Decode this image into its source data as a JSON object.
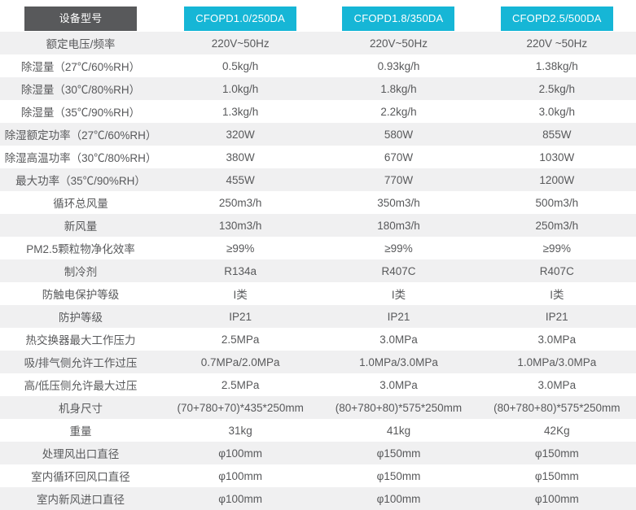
{
  "colors": {
    "header_label_bg": "#58595b",
    "model_badge_bg": "#16b6d6",
    "stripe_bg": "#f0f0f1",
    "text": "#58595b",
    "header_text": "#ffffff"
  },
  "table": {
    "header": {
      "label": "设备型号",
      "models": [
        "CFOPD1.0/250DA",
        "CFOPD1.8/350DA",
        "CFOPD2.5/500DA"
      ]
    },
    "rows": [
      {
        "label": "额定电压/频率",
        "values": [
          "220V~50Hz",
          "220V~50Hz",
          "220V ~50Hz"
        ]
      },
      {
        "label": "除湿量（27℃/60%RH）",
        "values": [
          "0.5kg/h",
          "0.93kg/h",
          "1.38kg/h"
        ]
      },
      {
        "label": "除湿量（30℃/80%RH）",
        "values": [
          "1.0kg/h",
          "1.8kg/h",
          "2.5kg/h"
        ]
      },
      {
        "label": "除湿量（35℃/90%RH）",
        "values": [
          "1.3kg/h",
          "2.2kg/h",
          "3.0kg/h"
        ]
      },
      {
        "label": "除湿额定功率（27℃/60%RH）",
        "values": [
          "320W",
          "580W",
          "855W"
        ]
      },
      {
        "label": "除湿高温功率（30℃/80%RH）",
        "values": [
          "380W",
          "670W",
          "1030W"
        ]
      },
      {
        "label": "最大功率（35℃/90%RH）",
        "values": [
          "455W",
          "770W",
          "1200W"
        ]
      },
      {
        "label": "循环总风量",
        "values": [
          "250m3/h",
          "350m3/h",
          "500m3/h"
        ]
      },
      {
        "label": "新风量",
        "values": [
          "130m3/h",
          "180m3/h",
          "250m3/h"
        ]
      },
      {
        "label": "PM2.5颗粒物净化效率",
        "values": [
          "≥99%",
          "≥99%",
          "≥99%"
        ]
      },
      {
        "label": "制冷剂",
        "values": [
          "R134a",
          "R407C",
          "R407C"
        ]
      },
      {
        "label": "防触电保护等级",
        "values": [
          "I类",
          "I类",
          "I类"
        ]
      },
      {
        "label": "防护等级",
        "values": [
          "IP21",
          "IP21",
          "IP21"
        ]
      },
      {
        "label": "热交换器最大工作压力",
        "values": [
          "2.5MPa",
          "3.0MPa",
          "3.0MPa"
        ]
      },
      {
        "label": "吸/排气侧允许工作过压",
        "values": [
          "0.7MPa/2.0MPa",
          "1.0MPa/3.0MPa",
          "1.0MPa/3.0MPa"
        ]
      },
      {
        "label": "高/低压侧允许最大过压",
        "values": [
          "2.5MPa",
          "3.0MPa",
          "3.0MPa"
        ]
      },
      {
        "label": "机身尺寸",
        "values": [
          "(70+780+70)*435*250mm",
          "(80+780+80)*575*250mm",
          "(80+780+80)*575*250mm"
        ]
      },
      {
        "label": "重量",
        "values": [
          "31kg",
          "41kg",
          "42Kg"
        ]
      },
      {
        "label": "处理风出口直径",
        "values": [
          "φ100mm",
          "φ150mm",
          "φ150mm"
        ]
      },
      {
        "label": "室内循环回风口直径",
        "values": [
          "φ100mm",
          "φ150mm",
          "φ150mm"
        ]
      },
      {
        "label": "室内新风进口直径",
        "values": [
          "φ100mm",
          "φ100mm",
          "φ100mm"
        ]
      }
    ]
  }
}
